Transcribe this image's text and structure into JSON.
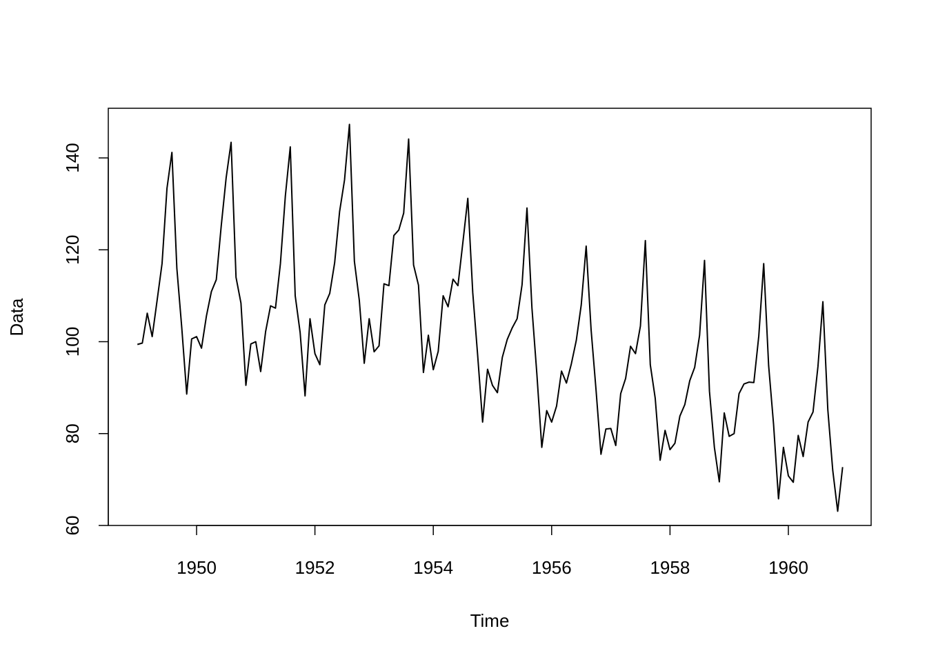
{
  "chart_data": {
    "type": "line",
    "title": "",
    "xlabel": "Time",
    "ylabel": "Data",
    "xlim": [
      1948.5,
      1961.5
    ],
    "ylim": [
      60,
      150
    ],
    "x_ticks": [
      1950,
      1952,
      1954,
      1956,
      1958,
      1960
    ],
    "x_tick_labels": [
      "1950",
      "1952",
      "1954",
      "1956",
      "1958",
      "1960"
    ],
    "y_ticks": [
      60,
      80,
      100,
      120,
      140
    ],
    "y_tick_labels": [
      "60",
      "80",
      "100",
      "120",
      "140"
    ],
    "grid": false,
    "line_color": "#000000",
    "series": [
      {
        "start": 1949.0,
        "frequency": 12,
        "values": [
          99.4,
          99.7,
          106.2,
          101.1,
          109.0,
          117.0,
          133.4,
          141.2,
          116.0,
          103.0,
          88.6,
          100.6,
          101.1,
          98.6,
          105.6,
          110.9,
          113.5,
          125.2,
          135.7,
          143.4,
          114.0,
          108.4,
          90.5,
          99.5,
          100.0,
          93.5,
          102.2,
          107.8,
          107.3,
          117.0,
          131.7,
          142.4,
          110.0,
          102.0,
          88.2,
          105.0,
          97.4,
          95.0,
          108.0,
          110.5,
          117.2,
          128.3,
          135.2,
          147.3,
          117.5,
          109.0,
          95.3,
          105.0,
          97.8,
          99.1,
          112.6,
          112.2,
          123.1,
          124.3,
          128.0,
          144.1,
          116.7,
          112.3,
          93.3,
          101.4,
          93.9,
          97.9,
          110.0,
          107.6,
          113.6,
          112.2,
          121.6,
          131.2,
          110.7,
          97.0,
          82.5,
          94.0,
          90.5,
          88.9,
          96.6,
          100.5,
          103.0,
          105.0,
          112.4,
          129.1,
          107.4,
          93.0,
          77.0,
          85.0,
          82.5,
          86.0,
          93.6,
          91.0,
          95.2,
          100.3,
          108.0,
          120.8,
          102.6,
          89.5,
          75.5,
          81.0,
          81.1,
          77.4,
          88.7,
          92.0,
          99.0,
          97.4,
          103.4,
          122.0,
          95.0,
          87.7,
          74.2,
          80.7,
          76.5,
          77.9,
          83.8,
          86.3,
          91.5,
          94.4,
          101.4,
          117.7,
          89.2,
          77.0,
          69.5,
          84.5,
          79.4,
          80.0,
          88.7,
          90.8,
          91.2,
          91.1,
          101.2,
          117.0,
          94.8,
          82.0,
          65.8,
          77.0,
          70.8,
          69.4,
          79.6,
          75.0,
          82.5,
          84.7,
          94.6,
          108.7,
          85.2,
          72.0,
          63.1,
          72.7
        ]
      }
    ]
  }
}
